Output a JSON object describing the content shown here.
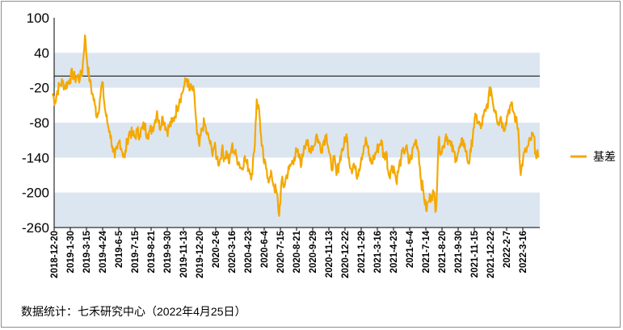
{
  "chart_data": {
    "type": "line",
    "title": "",
    "xlabel": "",
    "ylabel": "",
    "ylim": [
      -260,
      100
    ],
    "yticks": [
      100,
      40,
      -20,
      -80,
      -140,
      -200,
      -260
    ],
    "reference_line": 0,
    "band_fill": "#dce6f1",
    "x_tick_labels": [
      "2018-12-20",
      "2019-1-30",
      "2019-3-15",
      "2019-4-24",
      "2019-6-5",
      "2019-7-15",
      "2019-8-21",
      "2019-9-30",
      "2019-11-13",
      "2019-12-20",
      "2020-2-6",
      "2020-3-16",
      "2020-4-23",
      "2020-6-4",
      "2020-7-15",
      "2020-8-21",
      "2020-9-29",
      "2020-11-13",
      "2020-12-22",
      "2021-1-29",
      "2021-3-16",
      "2021-4-23",
      "2021-6-4",
      "2021-7-14",
      "2021-8-20",
      "2021-9-30",
      "2021-11-15",
      "2021-12-22",
      "2022-2-7",
      "2022-3-16"
    ],
    "series": [
      {
        "name": "基差",
        "color": "#f5a800",
        "values": [
          -30,
          -45,
          -25,
          -15,
          -10,
          -18,
          -12,
          -5,
          5,
          -5,
          0,
          -5,
          10,
          70,
          20,
          -10,
          -30,
          -50,
          -70,
          -40,
          -10,
          -55,
          -80,
          -95,
          -120,
          -140,
          -125,
          -110,
          -130,
          -140,
          -110,
          -95,
          -100,
          -105,
          -95,
          -100,
          -90,
          -85,
          -100,
          -95,
          -90,
          -80,
          -60,
          -90,
          -70,
          -80,
          -95,
          -85,
          -80,
          -70,
          -55,
          -40,
          -30,
          -15,
          -5,
          -25,
          -20,
          -35,
          -100,
          -120,
          -90,
          -80,
          -100,
          -110,
          -130,
          -120,
          -140,
          -150,
          -125,
          -140,
          -130,
          -150,
          -120,
          -130,
          -140,
          -150,
          -160,
          -140,
          -150,
          -160,
          -170,
          -130,
          -40,
          -60,
          -120,
          -150,
          -160,
          -180,
          -170,
          -190,
          -200,
          -240,
          -180,
          -190,
          -170,
          -160,
          -150,
          -140,
          -130,
          -140,
          -150,
          -120,
          -110,
          -130,
          -120,
          -120,
          -100,
          -115,
          -125,
          -110,
          -100,
          -130,
          -160,
          -140,
          -170,
          -150,
          -130,
          -120,
          -100,
          -140,
          -160,
          -150,
          -170,
          -160,
          -140,
          -120,
          -110,
          -135,
          -150,
          -140,
          -130,
          -120,
          -110,
          -140,
          -130,
          -170,
          -160,
          -155,
          -180,
          -160,
          -140,
          -130,
          -120,
          -150,
          -140,
          -120,
          -110,
          -130,
          -180,
          -200,
          -230,
          -215,
          -205,
          -200,
          -230,
          -110,
          -130,
          -120,
          -100,
          -110,
          -120,
          -130,
          -140,
          -130,
          -120,
          -110,
          -130,
          -150,
          -130,
          -90,
          -70,
          -80,
          -90,
          -70,
          -60,
          -40,
          -20,
          -50,
          -60,
          -80,
          -70,
          -90,
          -80,
          -60,
          -50,
          -60,
          -75,
          -90,
          -170,
          -140,
          -130,
          -120,
          -110,
          -100,
          -130,
          -140
        ]
      }
    ],
    "legend_position": "right",
    "source_text": "数据统计：七禾研究中心（2022年4月25日）"
  }
}
